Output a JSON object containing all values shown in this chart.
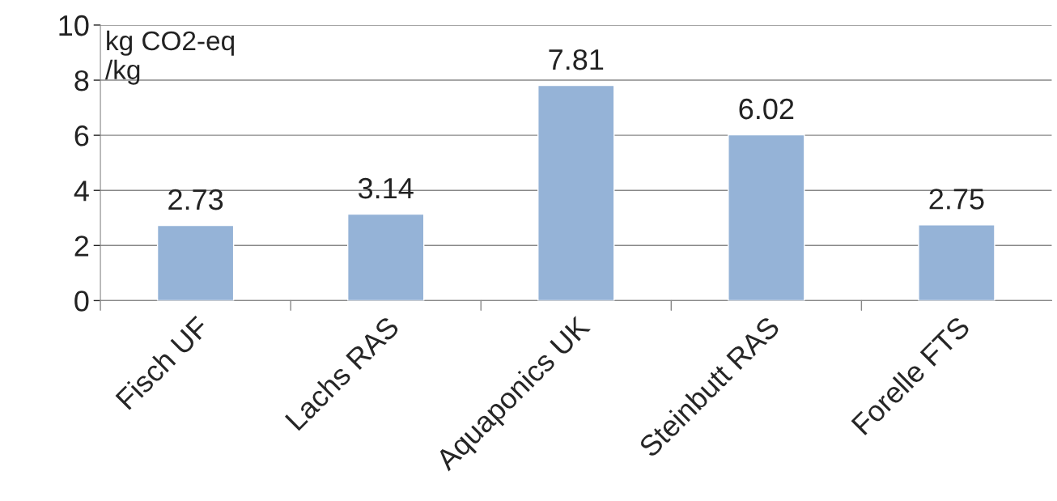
{
  "chart_data": {
    "type": "bar",
    "categories": [
      "Fisch UF",
      "Lachs RAS",
      "Aquaponics UK",
      "Steinbutt RAS",
      "Forelle FTS"
    ],
    "values": [
      2.73,
      3.14,
      7.81,
      6.02,
      2.75
    ],
    "color": "#95b3d7",
    "ylim": [
      0,
      10
    ],
    "yticks": [
      0,
      2,
      4,
      6,
      8,
      10
    ],
    "grid": "y",
    "data_labels": true,
    "annotations": [
      "kg CO2-eq\n/kg"
    ]
  }
}
